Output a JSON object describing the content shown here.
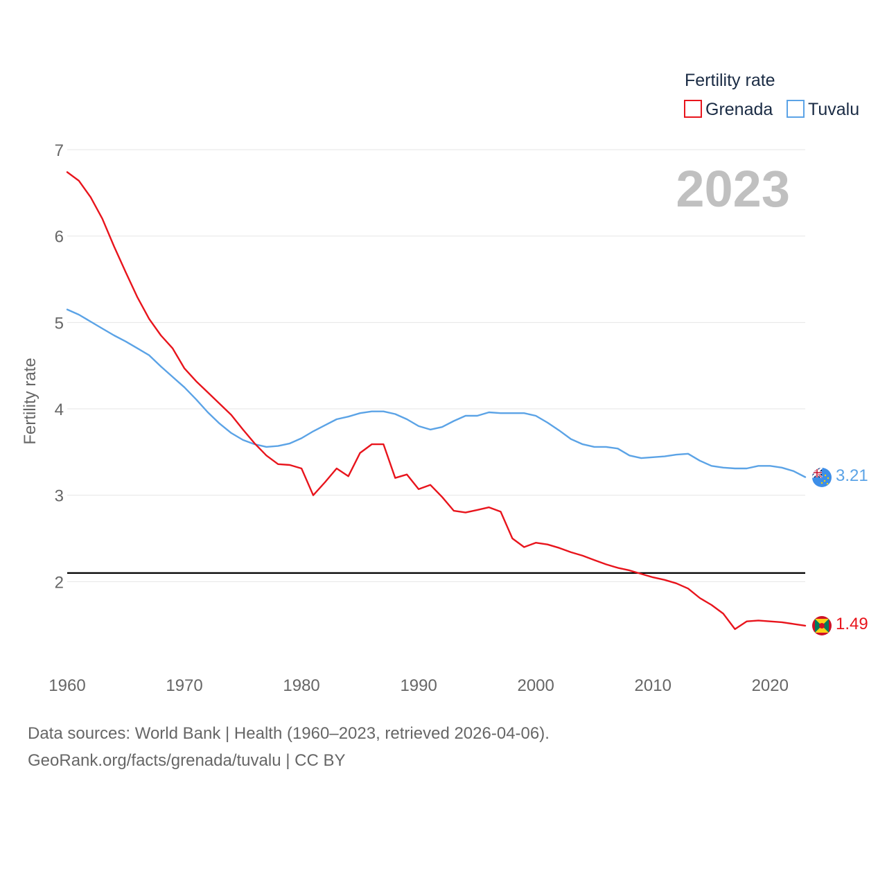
{
  "chart_data": {
    "type": "line",
    "year_label": "2023",
    "ylabel": "Fertility rate",
    "xlabel": "",
    "xlim": [
      1960,
      2023
    ],
    "ylim": [
      1.0,
      7.0
    ],
    "y_ticks": [
      "2",
      "3",
      "4",
      "5",
      "6",
      "7"
    ],
    "x_ticks": [
      "1960",
      "1970",
      "1980",
      "1990",
      "2000",
      "2010",
      "2020"
    ],
    "grid": true,
    "legend": {
      "title": "Fertility rate",
      "position": "top-right",
      "items": [
        {
          "name": "Grenada",
          "color": "#e8141c"
        },
        {
          "name": "Tuvalu",
          "color": "#5ba3e6"
        }
      ]
    },
    "reference_line": {
      "value": 2.1,
      "color": "#000000"
    },
    "x": [
      1960,
      1961,
      1962,
      1963,
      1964,
      1965,
      1966,
      1967,
      1968,
      1969,
      1970,
      1971,
      1972,
      1973,
      1974,
      1975,
      1976,
      1977,
      1978,
      1979,
      1980,
      1981,
      1982,
      1983,
      1984,
      1985,
      1986,
      1987,
      1988,
      1989,
      1990,
      1991,
      1992,
      1993,
      1994,
      1995,
      1996,
      1997,
      1998,
      1999,
      2000,
      2001,
      2002,
      2003,
      2004,
      2005,
      2006,
      2007,
      2008,
      2009,
      2010,
      2011,
      2012,
      2013,
      2014,
      2015,
      2016,
      2017,
      2018,
      2019,
      2020,
      2021,
      2022,
      2023
    ],
    "series": [
      {
        "name": "Grenada",
        "color": "#e8141c",
        "end_label": "1.49",
        "values": [
          6.74,
          6.64,
          6.45,
          6.2,
          5.88,
          5.58,
          5.29,
          5.04,
          4.85,
          4.7,
          4.47,
          4.32,
          4.19,
          4.06,
          3.93,
          3.76,
          3.6,
          3.46,
          3.36,
          3.35,
          3.31,
          3.0,
          3.15,
          3.31,
          3.22,
          3.49,
          3.59,
          3.59,
          3.2,
          3.24,
          3.07,
          3.12,
          2.98,
          2.82,
          2.8,
          2.83,
          2.86,
          2.81,
          2.5,
          2.4,
          2.45,
          2.43,
          2.39,
          2.34,
          2.3,
          2.25,
          2.2,
          2.16,
          2.13,
          2.09,
          2.05,
          2.02,
          1.98,
          1.92,
          1.81,
          1.73,
          1.63,
          1.45,
          1.54,
          1.55,
          1.54,
          1.53,
          1.51,
          1.49
        ]
      },
      {
        "name": "Tuvalu",
        "color": "#5ba3e6",
        "end_label": "3.21",
        "values": [
          5.15,
          5.09,
          5.01,
          4.93,
          4.85,
          4.78,
          4.7,
          4.62,
          4.49,
          4.37,
          4.25,
          4.11,
          3.96,
          3.83,
          3.72,
          3.64,
          3.59,
          3.56,
          3.57,
          3.6,
          3.66,
          3.74,
          3.81,
          3.88,
          3.91,
          3.95,
          3.97,
          3.97,
          3.94,
          3.88,
          3.8,
          3.76,
          3.79,
          3.86,
          3.92,
          3.92,
          3.96,
          3.95,
          3.95,
          3.95,
          3.92,
          3.84,
          3.75,
          3.65,
          3.59,
          3.56,
          3.56,
          3.54,
          3.46,
          3.43,
          3.44,
          3.45,
          3.47,
          3.48,
          3.4,
          3.34,
          3.32,
          3.31,
          3.31,
          3.34,
          3.34,
          3.32,
          3.28,
          3.21
        ]
      }
    ]
  },
  "footer": {
    "source_line": "Data sources: World Bank | Health (1960–2023, retrieved 2026-04-06).",
    "url_line": "GeoRank.org/facts/grenada/tuvalu | CC BY"
  }
}
